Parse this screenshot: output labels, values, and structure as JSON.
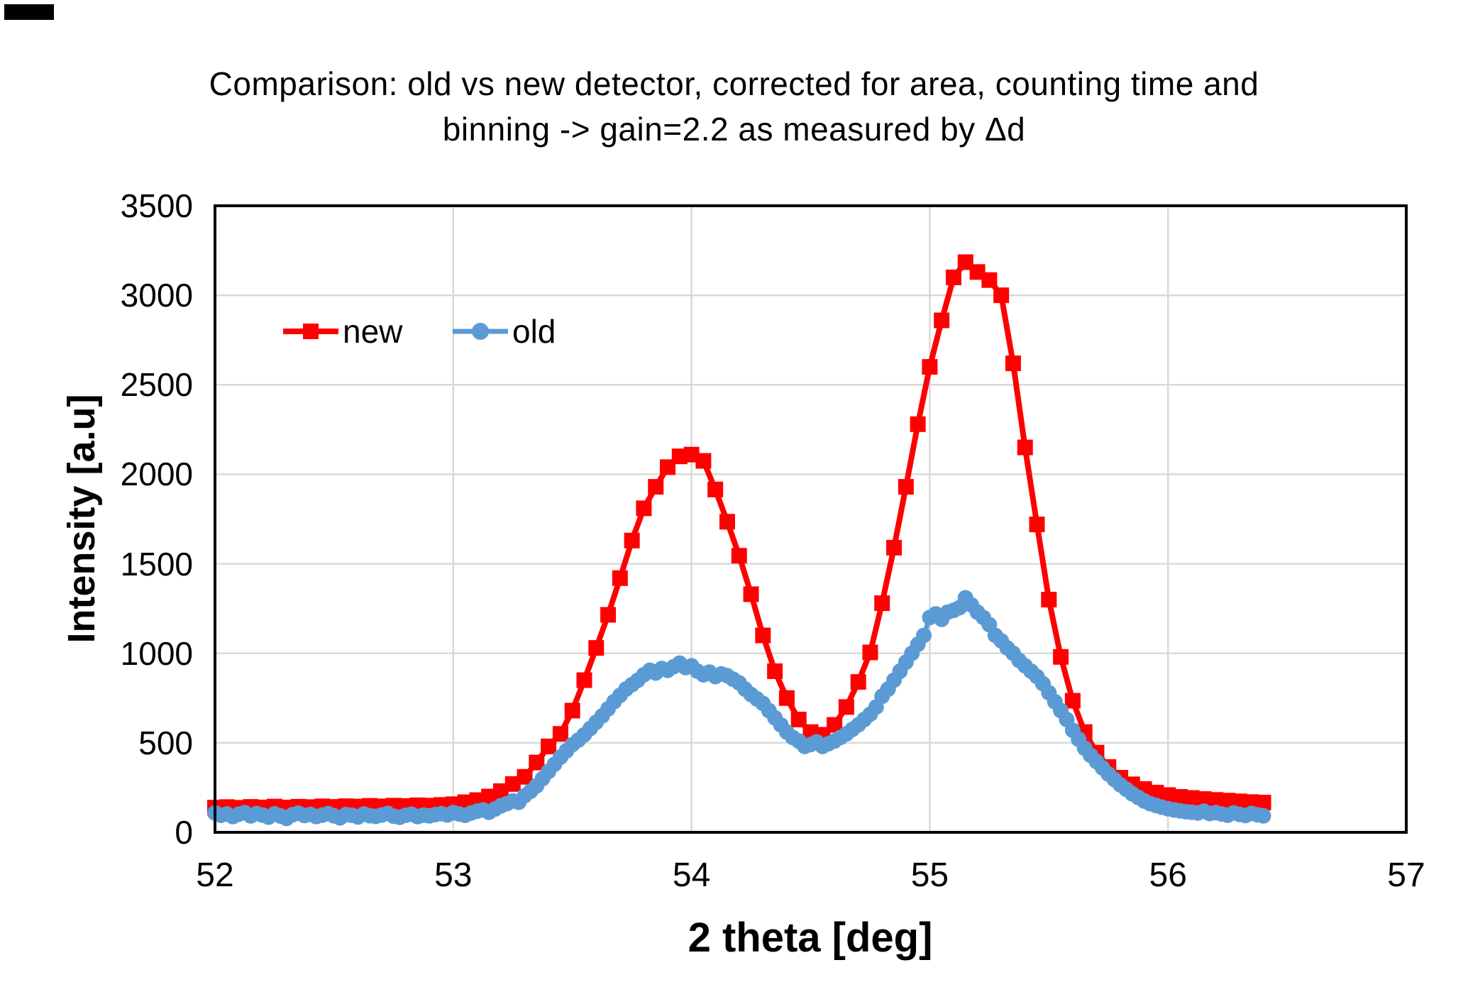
{
  "title": {
    "line1": "Comparison: old vs new detector, corrected for area, counting time and",
    "line2": "binning -> gain=2.2 as measured by Δd"
  },
  "styles": {
    "background": "#FFFFFF",
    "grid_color": "#D9D9D9",
    "axis_color": "#000000",
    "new_color": "#FF0000",
    "old_color": "#5B9BD5"
  },
  "chart_data": {
    "type": "line",
    "title": "Comparison: old vs new detector, corrected for area, counting time and binning -> gain=2.2 as measured by Δd",
    "xlabel": "2 theta [deg]",
    "ylabel": "Intensity [a.u]",
    "xlim": [
      52,
      57
    ],
    "ylim": [
      0,
      3500
    ],
    "x_ticks": [
      52,
      53,
      54,
      55,
      56,
      57
    ],
    "y_ticks": [
      0,
      500,
      1000,
      1500,
      2000,
      2500,
      3000,
      3500
    ],
    "grid": true,
    "legend_position": "inside top-left",
    "series": [
      {
        "name": "new",
        "color": "#FF0000",
        "marker": "square",
        "x_start": 52.0,
        "x_step": 0.05,
        "values": [
          138,
          141,
          137,
          142,
          139,
          144,
          138,
          143,
          141,
          145,
          142,
          146,
          144,
          148,
          145,
          149,
          147,
          151,
          149,
          153,
          157,
          168,
          180,
          200,
          230,
          270,
          310,
          390,
          480,
          550,
          680,
          850,
          1030,
          1215,
          1420,
          1630,
          1810,
          1930,
          2040,
          2100,
          2110,
          2075,
          1915,
          1735,
          1545,
          1330,
          1100,
          900,
          750,
          630,
          560,
          545,
          600,
          700,
          840,
          1005,
          1280,
          1590,
          1930,
          2280,
          2600,
          2860,
          3100,
          3185,
          3130,
          3085,
          3000,
          2620,
          2150,
          1720,
          1300,
          980,
          735,
          560,
          445,
          365,
          305,
          268,
          242,
          222,
          208,
          198,
          192,
          186,
          181,
          177,
          173,
          169,
          166
        ]
      },
      {
        "name": "old",
        "color": "#5B9BD5",
        "marker": "circle",
        "x_start": 52.0,
        "x_step": 0.025,
        "values": [
          108,
          95,
          102,
          88,
          101,
          110,
          92,
          105,
          96,
          85,
          103,
          91,
          78,
          98,
          107,
          94,
          100,
          88,
          96,
          104,
          92,
          81,
          99,
          95,
          86,
          102,
          93,
          89,
          97,
          105,
          90,
          84,
          95,
          101,
          88,
          96,
          92,
          99,
          104,
          97,
          110,
          102,
          95,
          108,
          118,
          125,
          112,
          130,
          148,
          160,
          175,
          168,
          205,
          230,
          260,
          300,
          340,
          380,
          420,
          455,
          490,
          515,
          545,
          580,
          615,
          650,
          690,
          730,
          765,
          800,
          825,
          850,
          880,
          905,
          890,
          915,
          905,
          925,
          945,
          920,
          930,
          900,
          880,
          895,
          870,
          885,
          875,
          855,
          835,
          800,
          770,
          745,
          720,
          680,
          640,
          600,
          560,
          530,
          510,
          480,
          490,
          505,
          480,
          495,
          510,
          530,
          550,
          575,
          600,
          630,
          660,
          700,
          760,
          800,
          850,
          900,
          950,
          1000,
          1050,
          1100,
          1200,
          1220,
          1190,
          1230,
          1240,
          1255,
          1310,
          1270,
          1230,
          1200,
          1160,
          1100,
          1070,
          1030,
          1000,
          960,
          930,
          900,
          870,
          830,
          780,
          730,
          680,
          630,
          570,
          520,
          470,
          430,
          395,
          360,
          325,
          295,
          265,
          240,
          215,
          195,
          175,
          160,
          150,
          140,
          132,
          125,
          120,
          115,
          112,
          108,
          118,
          105,
          110,
          102,
          96,
          108,
          100,
          94,
          105,
          98,
          92
        ]
      }
    ]
  }
}
